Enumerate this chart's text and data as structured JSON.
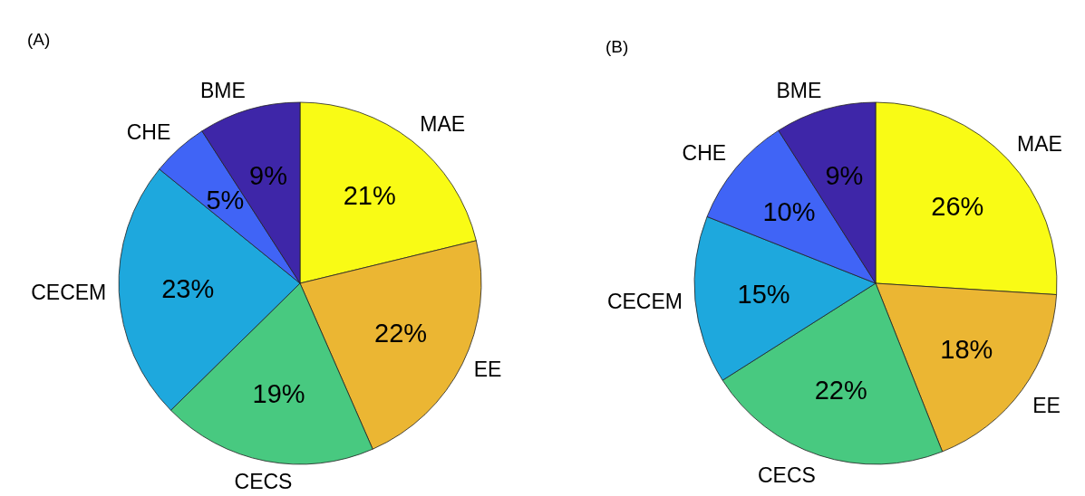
{
  "chart_data": [
    {
      "type": "pie",
      "title": "(A)",
      "categories": [
        "MAE",
        "EE",
        "CECS",
        "CECEM",
        "CHE",
        "BME"
      ],
      "values": [
        21,
        22,
        19,
        23,
        5,
        9
      ],
      "value_labels": [
        "21%",
        "22%",
        "19%",
        "23%",
        "5%",
        "9%"
      ],
      "colors": [
        "#f9fb15",
        "#ebb633",
        "#48c980",
        "#1ea8dd",
        "#4064f6",
        "#3e26a8"
      ]
    },
    {
      "type": "pie",
      "title": "(B)",
      "categories": [
        "MAE",
        "EE",
        "CECS",
        "CECEM",
        "CHE",
        "BME"
      ],
      "values": [
        26,
        18,
        22,
        15,
        10,
        9
      ],
      "value_labels": [
        "26%",
        "18%",
        "22%",
        "15%",
        "10%",
        "9%"
      ],
      "colors": [
        "#f9fb15",
        "#ebb633",
        "#48c980",
        "#1ea8dd",
        "#4064f6",
        "#3e26a8"
      ]
    }
  ]
}
